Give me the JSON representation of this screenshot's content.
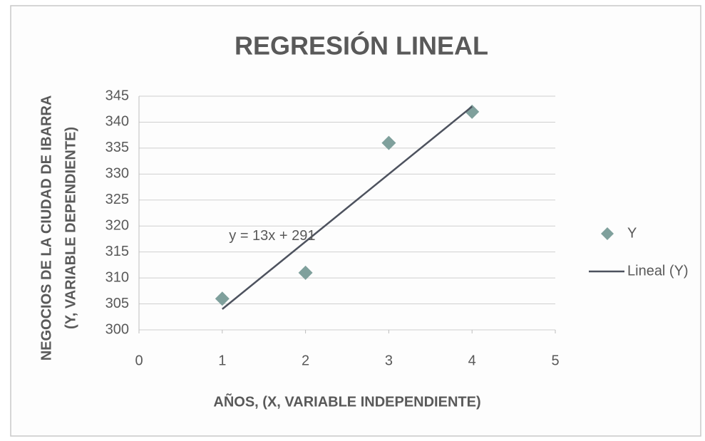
{
  "chart_data": {
    "type": "scatter",
    "title": "REGRESIÓN LINEAL",
    "xlabel": "AÑOS, (X, VARIABLE INDEPENDIENTE)",
    "ylabel": [
      "NEGOCIOS DE LA CIUDAD DE IBARRA",
      "(Y, VARIABLE DEPENDIENTE)"
    ],
    "series": [
      {
        "name": "Y",
        "type": "scatter",
        "marker": "diamond",
        "color": "#7fa09c",
        "x": [
          1,
          2,
          3,
          4
        ],
        "values": [
          306,
          311,
          336,
          342
        ]
      },
      {
        "name": "Lineal (Y)",
        "type": "line",
        "color": "#4d525e",
        "x": [
          1,
          4
        ],
        "values": [
          304,
          343
        ]
      }
    ],
    "annotations": [
      {
        "text": "y = 13x + 291",
        "x": 1.6,
        "y": 318
      }
    ],
    "xlim": [
      0,
      5
    ],
    "xticks": [
      0,
      1,
      2,
      3,
      4,
      5
    ],
    "ylim": [
      300,
      345
    ],
    "yticks": [
      300,
      305,
      310,
      315,
      320,
      325,
      330,
      335,
      340,
      345
    ],
    "grid": true,
    "legend": "right"
  }
}
